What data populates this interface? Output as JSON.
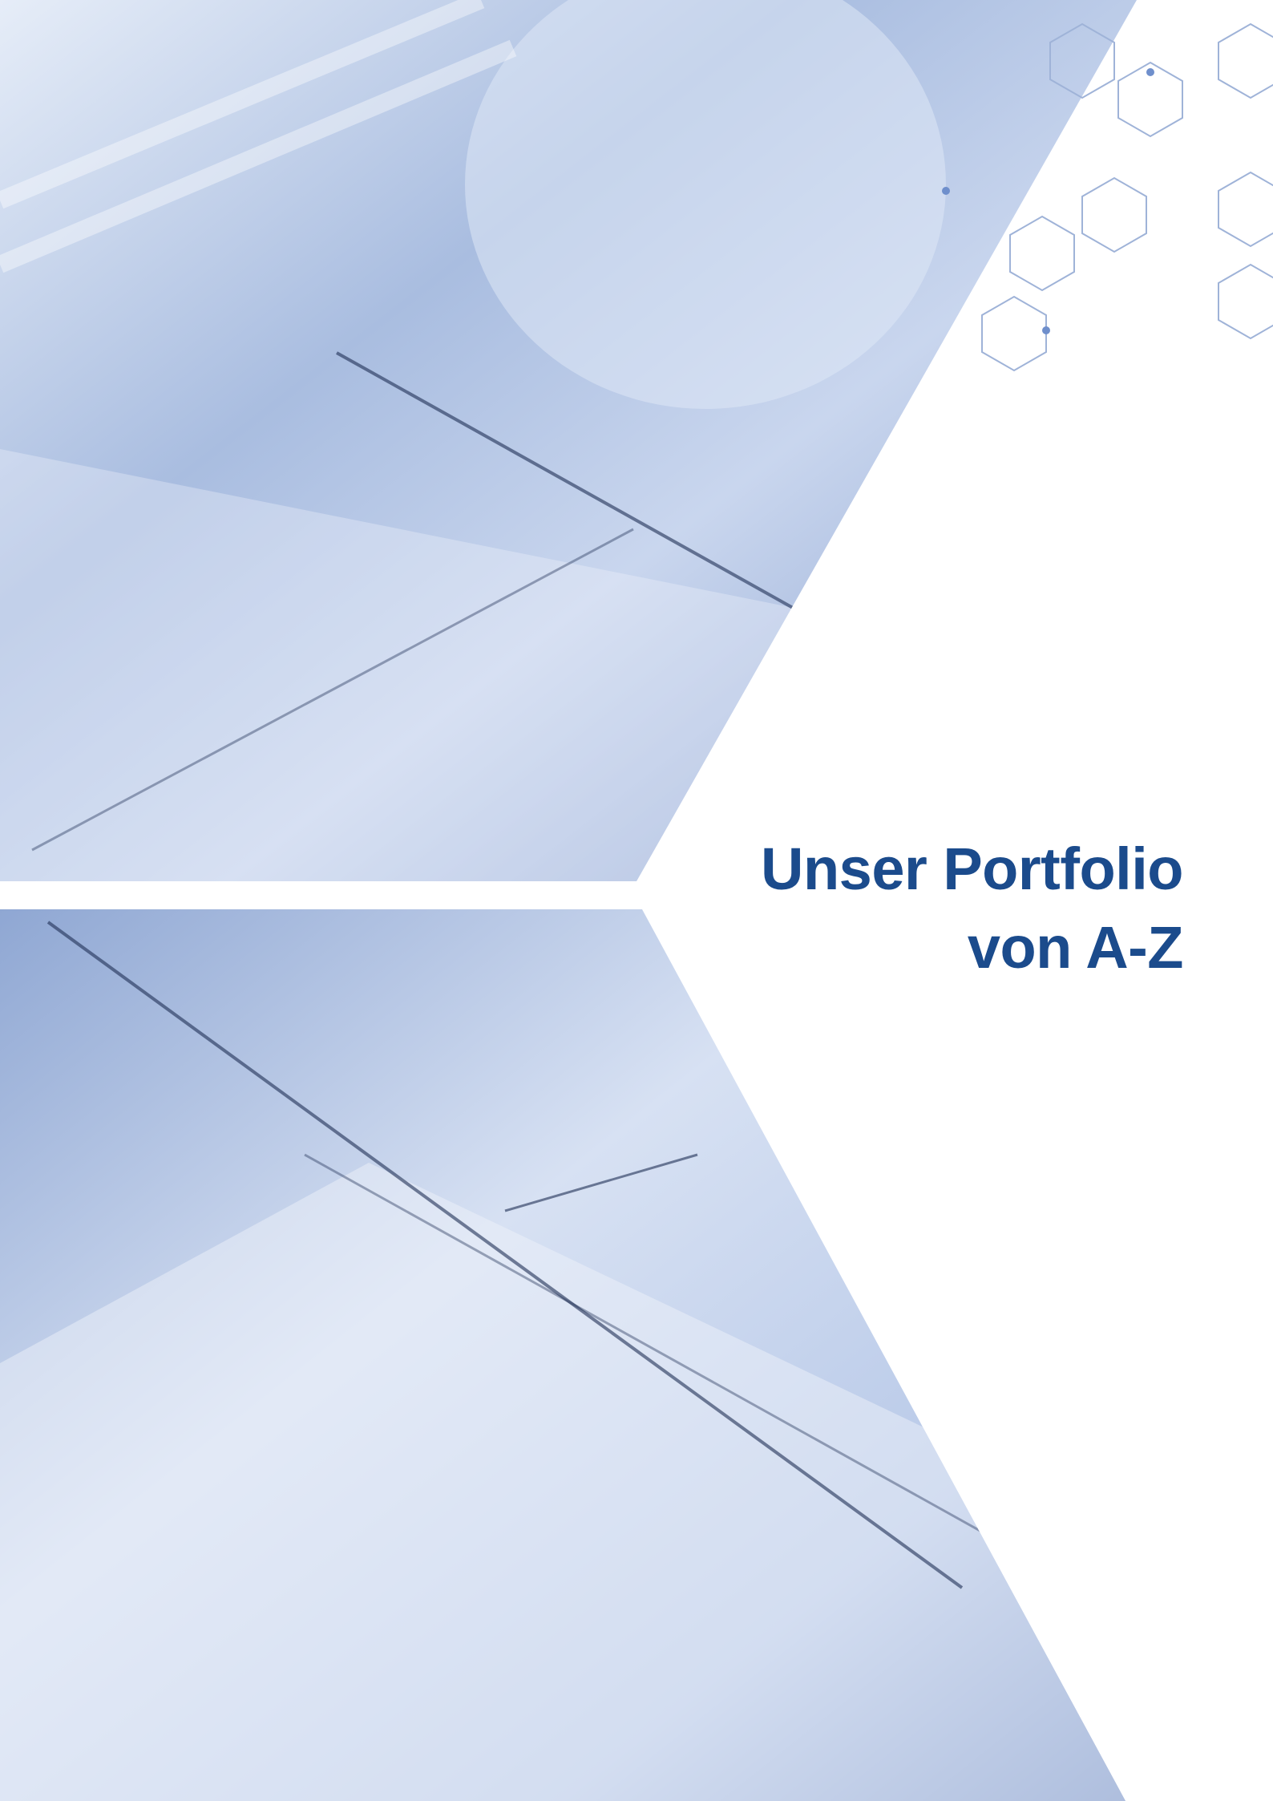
{
  "cover": {
    "title_lines": [
      "Unser Portfolio",
      "von A-Z"
    ]
  }
}
